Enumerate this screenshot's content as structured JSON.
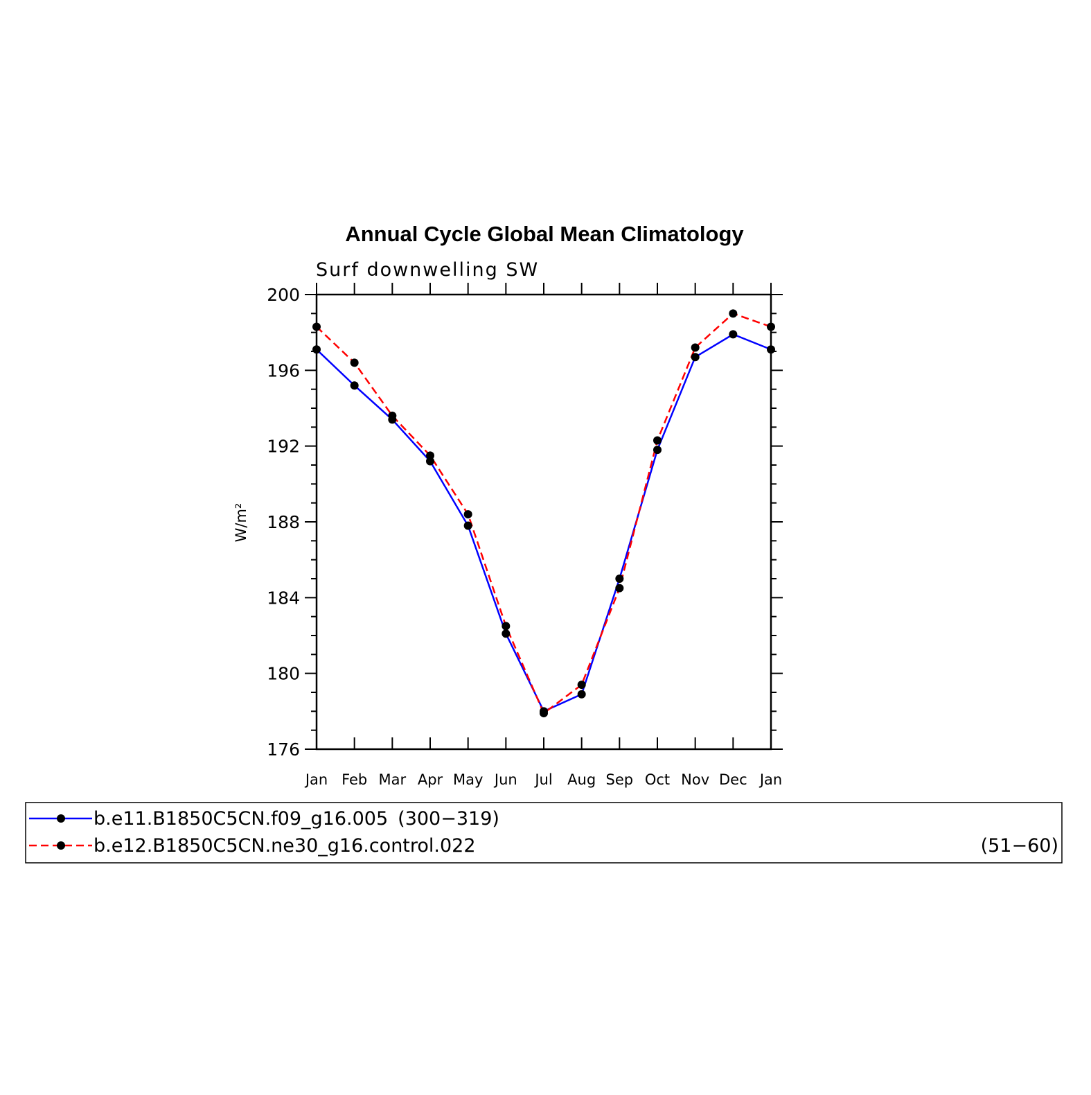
{
  "chart_data": {
    "type": "line",
    "title": "Annual Cycle Global Mean Climatology",
    "subtitle": "Surf downwelling SW",
    "ylabel": "W/m²",
    "xlabel": "",
    "categories": [
      "Jan",
      "Feb",
      "Mar",
      "Apr",
      "May",
      "Jun",
      "Jul",
      "Aug",
      "Sep",
      "Oct",
      "Nov",
      "Dec",
      "Jan"
    ],
    "ylim": [
      176,
      200
    ],
    "yticks": [
      "176",
      "180",
      "184",
      "188",
      "192",
      "196",
      "200"
    ],
    "grid": false,
    "legend_position": "bottom",
    "series": [
      {
        "name": "b.e11.B1850C5CN.f09_g16.005",
        "years": "(300−319)",
        "color": "#0000ff",
        "style": "solid",
        "values": [
          197.1,
          195.2,
          193.4,
          191.2,
          187.8,
          182.1,
          178.0,
          178.9,
          185.0,
          191.8,
          196.7,
          197.9,
          197.1
        ]
      },
      {
        "name": "b.e12.B1850C5CN.ne30_g16.control.022",
        "years": "(51−60)",
        "color": "#ff0000",
        "style": "dashed",
        "values": [
          198.3,
          196.4,
          193.6,
          191.5,
          188.4,
          182.5,
          177.9,
          179.4,
          184.5,
          192.3,
          197.2,
          199.0,
          198.3
        ]
      }
    ]
  }
}
